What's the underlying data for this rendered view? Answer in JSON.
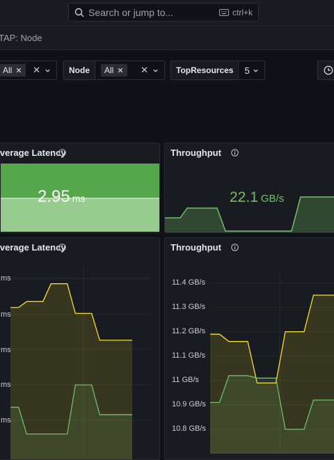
{
  "topbar": {
    "search_placeholder": "Search or jump to...",
    "shortcut": "ctrl+k"
  },
  "breadcrumb": "TAP: Node",
  "variables": [
    {
      "label": "",
      "value": "All"
    },
    {
      "label": "Node",
      "value": "All"
    },
    {
      "label": "TopResources",
      "value": "5"
    }
  ],
  "panels": {
    "stat_latency": {
      "title": "Average Latency",
      "value": "2.95",
      "unit": "ms",
      "color": "#56a64b"
    },
    "stat_throughput": {
      "title": "Throughput",
      "value": "22.1",
      "unit": "GB/s",
      "color": "#73bf69"
    },
    "ts_latency": {
      "title": "Average Latency"
    },
    "ts_throughput": {
      "title": "Throughput"
    }
  },
  "chart_data": [
    {
      "type": "line",
      "title": "Average Latency",
      "y_tick_labels": [
        "ms",
        "ms",
        "ms",
        "ms",
        "ms"
      ],
      "series": [
        {
          "color": "#fade2a",
          "values": [
            3.62,
            3.62,
            3.66,
            3.66,
            3.66,
            3.78,
            3.78,
            3.78,
            3.58,
            3.58,
            3.58,
            3.4,
            3.4,
            3.4,
            3.4,
            3.4
          ]
        },
        {
          "color": "#73bf69",
          "values": [
            2.95,
            2.95,
            2.77,
            2.77,
            2.77,
            2.77,
            2.77,
            2.77,
            3.1,
            3.1,
            3.1,
            2.9,
            2.9,
            2.9,
            2.9,
            2.9
          ]
        }
      ]
    },
    {
      "type": "line",
      "title": "Throughput",
      "ylim": [
        10.7,
        11.45
      ],
      "y_ticks": [
        "11.4 GB/s",
        "11.3 GB/s",
        "11.2 GB/s",
        "11.1 GB/s",
        "11 GB/s",
        "10.9 GB/s",
        "10.8 GB/s"
      ],
      "series": [
        {
          "color": "#fade2a",
          "values": [
            11.19,
            11.19,
            11.16,
            11.16,
            11.16,
            10.99,
            10.99,
            10.99,
            11.2,
            11.2,
            11.2,
            11.35,
            11.35,
            11.35,
            11.35
          ]
        },
        {
          "color": "#73bf69",
          "values": [
            10.91,
            10.91,
            11.02,
            11.02,
            11.02,
            11.01,
            11.01,
            11.01,
            10.8,
            10.8,
            10.8,
            10.92,
            10.92,
            10.92,
            10.92
          ]
        }
      ]
    }
  ]
}
